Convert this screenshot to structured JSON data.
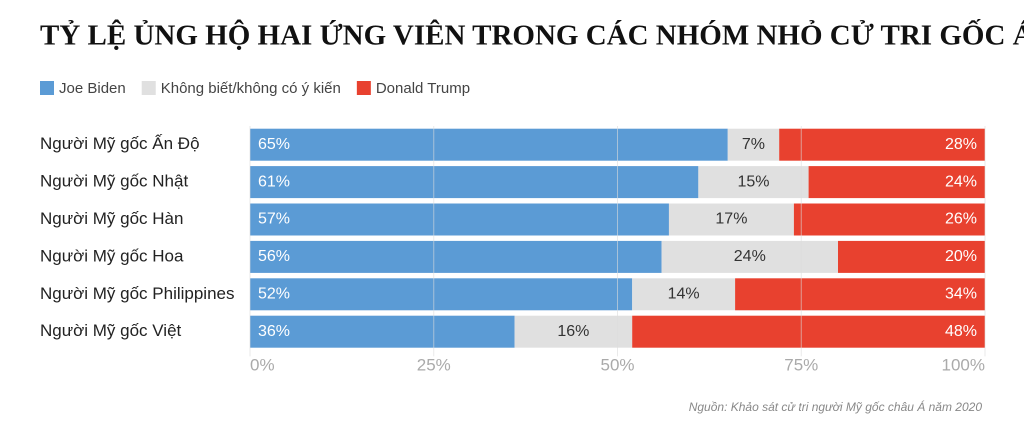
{
  "chart_data": {
    "type": "stacked-bar-horizontal",
    "title": "TỶ LỆ ỦNG HỘ HAI ỨNG VIÊN TRONG CÁC NHÓM NHỎ CỬ TRI GỐC Á",
    "categories": [
      "Người Mỹ gốc Ấn Độ",
      "Người Mỹ gốc Nhật",
      "Người Mỹ gốc Hàn",
      "Người Mỹ gốc Hoa",
      "Người Mỹ gốc Philippines",
      "Người Mỹ gốc Việt"
    ],
    "series": [
      {
        "name": "Joe Biden",
        "color": "#5b9bd5",
        "values": [
          65,
          61,
          57,
          56,
          52,
          36
        ],
        "value_labels": [
          "65%",
          "61%",
          "57%",
          "56%",
          "52%",
          "36%"
        ]
      },
      {
        "name": "Không biết/không có ý kiến",
        "color": "#e0e0e0",
        "values": [
          7,
          15,
          17,
          24,
          14,
          16
        ],
        "value_labels": [
          "7%",
          "15%",
          "17%",
          "24%",
          "14%",
          "16%"
        ]
      },
      {
        "name": "Donald Trump",
        "color": "#e8412f",
        "values": [
          28,
          24,
          26,
          20,
          34,
          48
        ],
        "value_labels": [
          "28%",
          "24%",
          "26%",
          "20%",
          "34%",
          "48%"
        ]
      }
    ],
    "xlim": [
      0,
      100
    ],
    "xticks": [
      {
        "value": 0,
        "label": "0%"
      },
      {
        "value": 25,
        "label": "25%"
      },
      {
        "value": 50,
        "label": "50%"
      },
      {
        "value": 75,
        "label": "75%"
      },
      {
        "value": 100,
        "label": "100%"
      }
    ],
    "grid": true,
    "legend": "top",
    "source": "Nguồn: Khảo sát cử tri người Mỹ gốc châu Á năm 2020"
  }
}
